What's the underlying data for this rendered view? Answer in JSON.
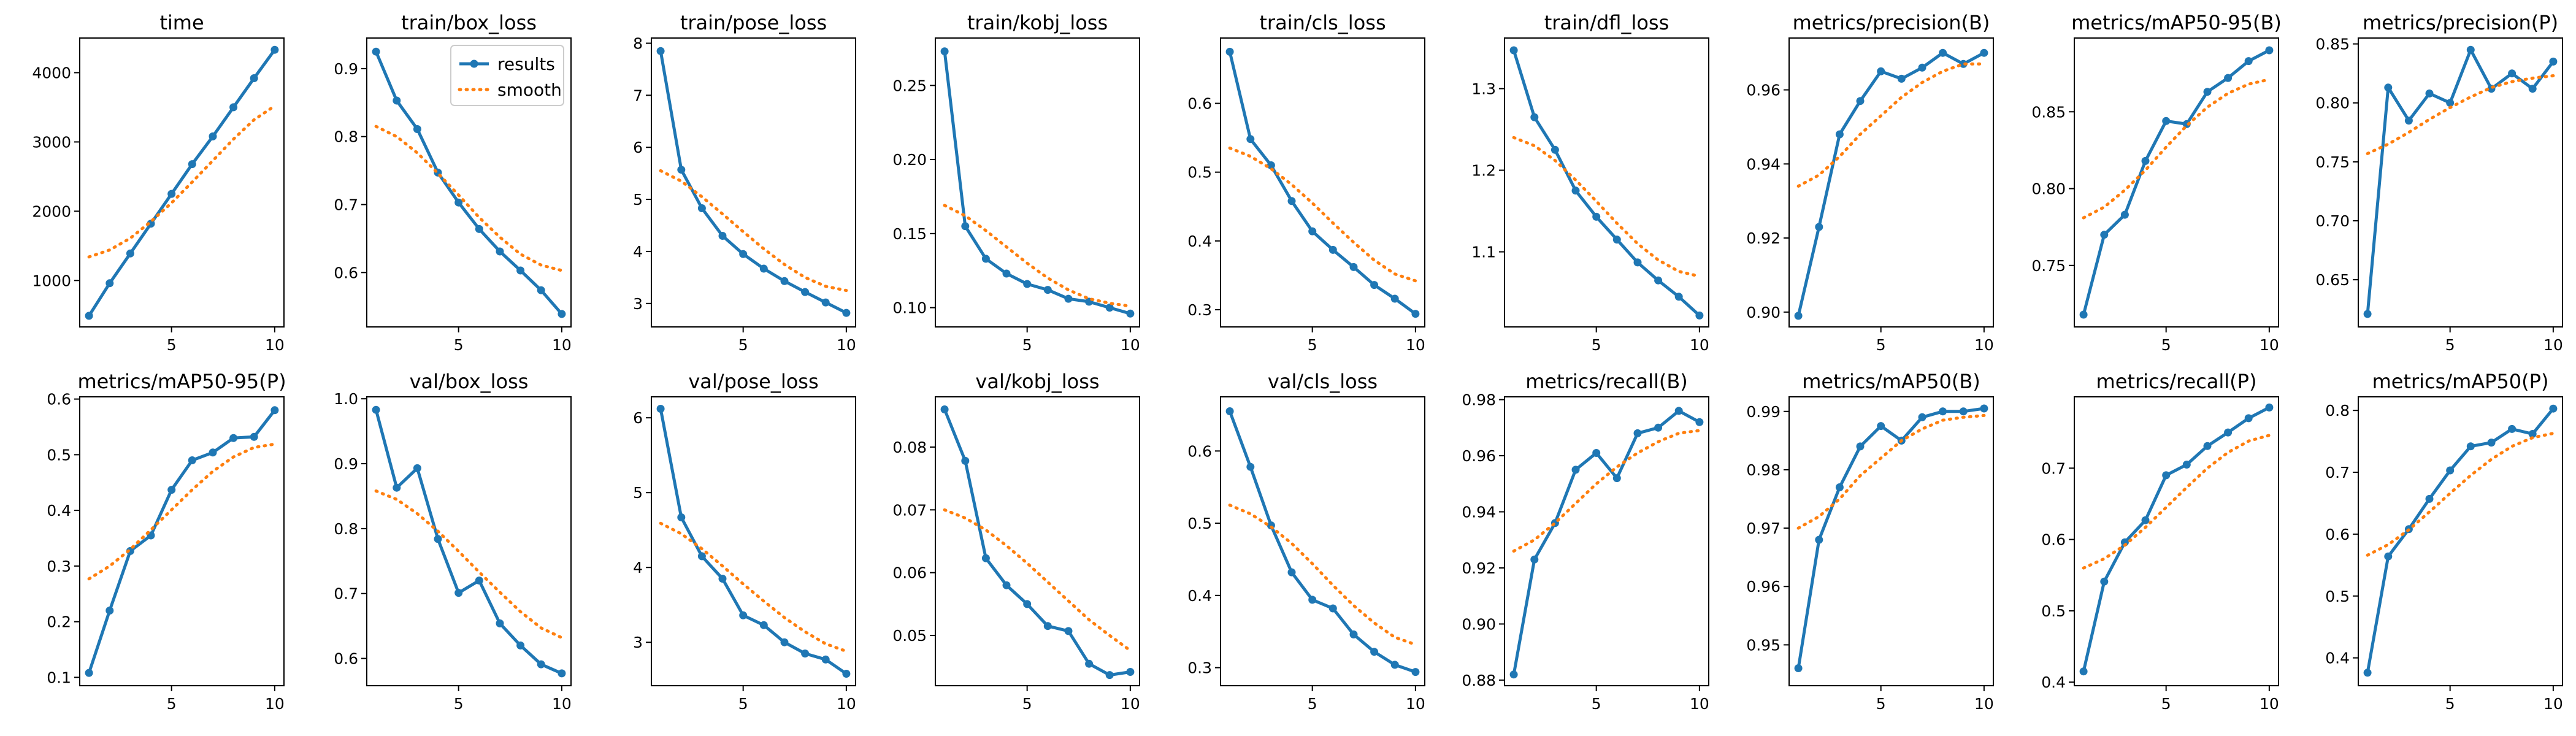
{
  "legend": {
    "results": "results",
    "smooth": "smooth"
  },
  "colors": {
    "results": "#1f77b4",
    "smooth": "#ff7f0e"
  },
  "chart_data": [
    {
      "type": "line",
      "title": "time",
      "x": [
        1,
        2,
        3,
        4,
        5,
        6,
        7,
        8,
        9,
        10
      ],
      "series": [
        {
          "name": "results",
          "values": [
            490,
            960,
            1390,
            1820,
            2250,
            2680,
            3080,
            3500,
            3920,
            4330
          ]
        },
        {
          "name": "smooth",
          "values": [
            1340,
            1440,
            1610,
            1850,
            2120,
            2420,
            2730,
            3040,
            3320,
            3520
          ]
        }
      ],
      "ylim": [
        330,
        4500
      ],
      "yticks": [
        1000,
        2000,
        3000,
        4000
      ],
      "yticklabels": [
        "1000",
        "2000",
        "3000",
        "4000"
      ],
      "xticks": [
        5,
        10
      ]
    },
    {
      "type": "line",
      "title": "train/box_loss",
      "x": [
        1,
        2,
        3,
        4,
        5,
        6,
        7,
        8,
        9,
        10
      ],
      "legend": "top-right",
      "series": [
        {
          "name": "results",
          "values": [
            0.925,
            0.853,
            0.811,
            0.747,
            0.703,
            0.664,
            0.631,
            0.603,
            0.574,
            0.539
          ]
        },
        {
          "name": "smooth",
          "values": [
            0.815,
            0.8,
            0.776,
            0.746,
            0.714,
            0.681,
            0.652,
            0.627,
            0.611,
            0.603
          ]
        }
      ],
      "ylim": [
        0.52,
        0.945
      ],
      "yticks": [
        0.6,
        0.7,
        0.8,
        0.9
      ],
      "yticklabels": [
        "0.6",
        "0.7",
        "0.8",
        "0.9"
      ],
      "xticks": [
        5,
        10
      ]
    },
    {
      "type": "line",
      "title": "train/pose_loss",
      "x": [
        1,
        2,
        3,
        4,
        5,
        6,
        7,
        8,
        9,
        10
      ],
      "series": [
        {
          "name": "results",
          "values": [
            7.85,
            5.57,
            4.83,
            4.3,
            3.95,
            3.67,
            3.43,
            3.22,
            3.02,
            2.82
          ]
        },
        {
          "name": "smooth",
          "values": [
            5.55,
            5.35,
            5.05,
            4.72,
            4.38,
            4.05,
            3.75,
            3.5,
            3.33,
            3.25
          ]
        }
      ],
      "ylim": [
        2.55,
        8.1
      ],
      "yticks": [
        3,
        4,
        5,
        6,
        7,
        8
      ],
      "yticklabels": [
        "3",
        "4",
        "5",
        "6",
        "7",
        "8"
      ],
      "xticks": [
        5,
        10
      ]
    },
    {
      "type": "line",
      "title": "train/kobj_loss",
      "x": [
        1,
        2,
        3,
        4,
        5,
        6,
        7,
        8,
        9,
        10
      ],
      "series": [
        {
          "name": "results",
          "values": [
            0.273,
            0.155,
            0.133,
            0.123,
            0.116,
            0.112,
            0.106,
            0.104,
            0.1,
            0.096
          ]
        },
        {
          "name": "smooth",
          "values": [
            0.169,
            0.162,
            0.152,
            0.141,
            0.13,
            0.12,
            0.112,
            0.106,
            0.103,
            0.101
          ]
        }
      ],
      "ylim": [
        0.087,
        0.282
      ],
      "yticks": [
        0.1,
        0.15,
        0.2,
        0.25
      ],
      "yticklabels": [
        "0.10",
        "0.15",
        "0.20",
        "0.25"
      ],
      "xticks": [
        5,
        10
      ]
    },
    {
      "type": "line",
      "title": "train/cls_loss",
      "x": [
        1,
        2,
        3,
        4,
        5,
        6,
        7,
        8,
        9,
        10
      ],
      "series": [
        {
          "name": "results",
          "values": [
            0.675,
            0.548,
            0.51,
            0.458,
            0.414,
            0.387,
            0.362,
            0.336,
            0.316,
            0.294
          ]
        },
        {
          "name": "smooth",
          "values": [
            0.535,
            0.523,
            0.505,
            0.482,
            0.455,
            0.426,
            0.398,
            0.372,
            0.352,
            0.342
          ]
        }
      ],
      "ylim": [
        0.275,
        0.695
      ],
      "yticks": [
        0.3,
        0.4,
        0.5,
        0.6
      ],
      "yticklabels": [
        "0.3",
        "0.4",
        "0.5",
        "0.6"
      ],
      "xticks": [
        5,
        10
      ]
    },
    {
      "type": "line",
      "title": "train/dfl_loss",
      "x": [
        1,
        2,
        3,
        4,
        5,
        6,
        7,
        8,
        9,
        10
      ],
      "series": [
        {
          "name": "results",
          "values": [
            1.347,
            1.265,
            1.225,
            1.175,
            1.143,
            1.115,
            1.087,
            1.065,
            1.045,
            1.022
          ]
        },
        {
          "name": "smooth",
          "values": [
            1.24,
            1.23,
            1.212,
            1.188,
            1.162,
            1.135,
            1.11,
            1.09,
            1.076,
            1.07
          ]
        }
      ],
      "ylim": [
        1.008,
        1.362
      ],
      "yticks": [
        1.1,
        1.2,
        1.3
      ],
      "yticklabels": [
        "1.1",
        "1.2",
        "1.3"
      ],
      "xticks": [
        5,
        10
      ]
    },
    {
      "type": "line",
      "title": "metrics/precision(B)",
      "x": [
        1,
        2,
        3,
        4,
        5,
        6,
        7,
        8,
        9,
        10
      ],
      "series": [
        {
          "name": "results",
          "values": [
            0.899,
            0.923,
            0.948,
            0.957,
            0.965,
            0.963,
            0.966,
            0.97,
            0.967,
            0.97
          ]
        },
        {
          "name": "smooth",
          "values": [
            0.934,
            0.937,
            0.942,
            0.948,
            0.953,
            0.958,
            0.962,
            0.965,
            0.967,
            0.967
          ]
        }
      ],
      "ylim": [
        0.896,
        0.974
      ],
      "yticks": [
        0.9,
        0.92,
        0.94,
        0.96
      ],
      "yticklabels": [
        "0.90",
        "0.92",
        "0.94",
        "0.96"
      ],
      "xticks": [
        5,
        10
      ]
    },
    {
      "type": "line",
      "title": "metrics/mAP50-95(B)",
      "x": [
        1,
        2,
        3,
        4,
        5,
        6,
        7,
        8,
        9,
        10
      ],
      "series": [
        {
          "name": "results",
          "values": [
            0.718,
            0.77,
            0.783,
            0.818,
            0.844,
            0.842,
            0.863,
            0.872,
            0.883,
            0.89
          ]
        },
        {
          "name": "smooth",
          "values": [
            0.781,
            0.788,
            0.799,
            0.812,
            0.827,
            0.841,
            0.853,
            0.862,
            0.868,
            0.871
          ]
        }
      ],
      "ylim": [
        0.71,
        0.898
      ],
      "yticks": [
        0.75,
        0.8,
        0.85
      ],
      "yticklabels": [
        "0.75",
        "0.80",
        "0.85"
      ],
      "xticks": [
        5,
        10
      ]
    },
    {
      "type": "line",
      "title": "metrics/precision(P)",
      "x": [
        1,
        2,
        3,
        4,
        5,
        6,
        7,
        8,
        9,
        10
      ],
      "series": [
        {
          "name": "results",
          "values": [
            0.621,
            0.813,
            0.785,
            0.808,
            0.8,
            0.845,
            0.812,
            0.825,
            0.812,
            0.835
          ]
        },
        {
          "name": "smooth",
          "values": [
            0.757,
            0.765,
            0.775,
            0.786,
            0.796,
            0.805,
            0.813,
            0.818,
            0.821,
            0.823
          ]
        }
      ],
      "ylim": [
        0.61,
        0.855
      ],
      "yticks": [
        0.65,
        0.7,
        0.75,
        0.8,
        0.85
      ],
      "yticklabels": [
        "0.65",
        "0.70",
        "0.75",
        "0.80",
        "0.85"
      ],
      "xticks": [
        5,
        10
      ]
    },
    {
      "type": "line",
      "title": "metrics/mAP50-95(P)",
      "x": [
        1,
        2,
        3,
        4,
        5,
        6,
        7,
        8,
        9,
        10
      ],
      "series": [
        {
          "name": "results",
          "values": [
            0.108,
            0.22,
            0.327,
            0.355,
            0.437,
            0.49,
            0.504,
            0.53,
            0.532,
            0.58
          ]
        },
        {
          "name": "smooth",
          "values": [
            0.277,
            0.3,
            0.33,
            0.365,
            0.401,
            0.437,
            0.47,
            0.496,
            0.513,
            0.519
          ]
        }
      ],
      "ylim": [
        0.085,
        0.604
      ],
      "yticks": [
        0.1,
        0.2,
        0.3,
        0.4,
        0.5,
        0.6
      ],
      "yticklabels": [
        "0.1",
        "0.2",
        "0.3",
        "0.4",
        "0.5",
        "0.6"
      ],
      "xticks": [
        5,
        10
      ]
    },
    {
      "type": "line",
      "title": "val/box_loss",
      "x": [
        1,
        2,
        3,
        4,
        5,
        6,
        7,
        8,
        9,
        10
      ],
      "series": [
        {
          "name": "results",
          "values": [
            0.983,
            0.863,
            0.893,
            0.784,
            0.701,
            0.72,
            0.654,
            0.62,
            0.591,
            0.577
          ]
        },
        {
          "name": "smooth",
          "values": [
            0.858,
            0.845,
            0.823,
            0.796,
            0.765,
            0.733,
            0.702,
            0.672,
            0.647,
            0.632
          ]
        }
      ],
      "ylim": [
        0.558,
        1.003
      ],
      "yticks": [
        0.6,
        0.7,
        0.8,
        0.9,
        1.0
      ],
      "yticklabels": [
        "0.6",
        "0.7",
        "0.8",
        "0.9",
        "1.0"
      ],
      "xticks": [
        5,
        10
      ]
    },
    {
      "type": "line",
      "title": "val/pose_loss",
      "x": [
        1,
        2,
        3,
        4,
        5,
        6,
        7,
        8,
        9,
        10
      ],
      "series": [
        {
          "name": "results",
          "values": [
            6.12,
            4.67,
            4.15,
            3.85,
            3.36,
            3.23,
            3.0,
            2.85,
            2.77,
            2.58
          ]
        },
        {
          "name": "smooth",
          "values": [
            4.59,
            4.45,
            4.25,
            4.02,
            3.78,
            3.55,
            3.33,
            3.14,
            2.98,
            2.88
          ]
        }
      ],
      "ylim": [
        2.42,
        6.28
      ],
      "yticks": [
        3,
        4,
        5,
        6
      ],
      "yticklabels": [
        "3",
        "4",
        "5",
        "6"
      ],
      "xticks": [
        5,
        10
      ]
    },
    {
      "type": "line",
      "title": "val/kobj_loss",
      "x": [
        1,
        2,
        3,
        4,
        5,
        6,
        7,
        8,
        9,
        10
      ],
      "series": [
        {
          "name": "results",
          "values": [
            0.086,
            0.0778,
            0.0623,
            0.058,
            0.055,
            0.0515,
            0.0507,
            0.0455,
            0.0437,
            0.0442
          ]
        },
        {
          "name": "smooth",
          "values": [
            0.07,
            0.0687,
            0.0668,
            0.0643,
            0.0615,
            0.0585,
            0.0555,
            0.0525,
            0.05,
            0.0476
          ]
        }
      ],
      "ylim": [
        0.042,
        0.088
      ],
      "yticks": [
        0.05,
        0.06,
        0.07,
        0.08
      ],
      "yticklabels": [
        "0.05",
        "0.06",
        "0.07",
        "0.08"
      ],
      "xticks": [
        5,
        10
      ]
    },
    {
      "type": "line",
      "title": "val/cls_loss",
      "x": [
        1,
        2,
        3,
        4,
        5,
        6,
        7,
        8,
        9,
        10
      ],
      "series": [
        {
          "name": "results",
          "values": [
            0.655,
            0.578,
            0.497,
            0.432,
            0.394,
            0.382,
            0.346,
            0.322,
            0.304,
            0.294
          ]
        },
        {
          "name": "smooth",
          "values": [
            0.525,
            0.513,
            0.495,
            0.472,
            0.444,
            0.414,
            0.386,
            0.362,
            0.342,
            0.332
          ]
        }
      ],
      "ylim": [
        0.275,
        0.675
      ],
      "yticks": [
        0.3,
        0.4,
        0.5,
        0.6
      ],
      "yticklabels": [
        "0.3",
        "0.4",
        "0.5",
        "0.6"
      ],
      "xticks": [
        5,
        10
      ]
    },
    {
      "type": "line",
      "title": "metrics/recall(B)",
      "x": [
        1,
        2,
        3,
        4,
        5,
        6,
        7,
        8,
        9,
        10
      ],
      "series": [
        {
          "name": "results",
          "values": [
            0.882,
            0.923,
            0.936,
            0.955,
            0.961,
            0.952,
            0.968,
            0.97,
            0.976,
            0.972
          ]
        },
        {
          "name": "smooth",
          "values": [
            0.926,
            0.93,
            0.936,
            0.943,
            0.95,
            0.956,
            0.961,
            0.965,
            0.968,
            0.969
          ]
        }
      ],
      "ylim": [
        0.878,
        0.981
      ],
      "yticks": [
        0.88,
        0.9,
        0.92,
        0.94,
        0.96,
        0.98
      ],
      "yticklabels": [
        "0.88",
        "0.90",
        "0.92",
        "0.94",
        "0.96",
        "0.98"
      ],
      "xticks": [
        5,
        10
      ]
    },
    {
      "type": "line",
      "title": "metrics/mAP50(B)",
      "x": [
        1,
        2,
        3,
        4,
        5,
        6,
        7,
        8,
        9,
        10
      ],
      "series": [
        {
          "name": "results",
          "values": [
            0.946,
            0.968,
            0.977,
            0.984,
            0.9875,
            0.985,
            0.989,
            0.99,
            0.99,
            0.9905
          ]
        },
        {
          "name": "smooth",
          "values": [
            0.97,
            0.972,
            0.975,
            0.979,
            0.982,
            0.985,
            0.987,
            0.9885,
            0.989,
            0.9893
          ]
        }
      ],
      "ylim": [
        0.943,
        0.9925
      ],
      "yticks": [
        0.95,
        0.96,
        0.97,
        0.98,
        0.99
      ],
      "yticklabels": [
        "0.95",
        "0.96",
        "0.97",
        "0.98",
        "0.99"
      ],
      "xticks": [
        5,
        10
      ]
    },
    {
      "type": "line",
      "title": "metrics/recall(P)",
      "x": [
        1,
        2,
        3,
        4,
        5,
        6,
        7,
        8,
        9,
        10
      ],
      "series": [
        {
          "name": "results",
          "values": [
            0.415,
            0.541,
            0.596,
            0.627,
            0.69,
            0.705,
            0.731,
            0.75,
            0.77,
            0.785
          ]
        },
        {
          "name": "smooth",
          "values": [
            0.56,
            0.573,
            0.592,
            0.617,
            0.645,
            0.673,
            0.7,
            0.722,
            0.738,
            0.746
          ]
        }
      ],
      "ylim": [
        0.395,
        0.8
      ],
      "yticks": [
        0.4,
        0.5,
        0.6,
        0.7
      ],
      "yticklabels": [
        "0.4",
        "0.5",
        "0.6",
        "0.7"
      ],
      "xticks": [
        5,
        10
      ]
    },
    {
      "type": "line",
      "title": "metrics/mAP50(P)",
      "x": [
        1,
        2,
        3,
        4,
        5,
        6,
        7,
        8,
        9,
        10
      ],
      "series": [
        {
          "name": "results",
          "values": [
            0.376,
            0.564,
            0.608,
            0.657,
            0.703,
            0.742,
            0.748,
            0.77,
            0.762,
            0.803
          ]
        },
        {
          "name": "smooth",
          "values": [
            0.566,
            0.583,
            0.607,
            0.636,
            0.666,
            0.695,
            0.721,
            0.742,
            0.756,
            0.763
          ]
        }
      ],
      "ylim": [
        0.355,
        0.822
      ],
      "yticks": [
        0.4,
        0.5,
        0.6,
        0.7,
        0.8
      ],
      "yticklabels": [
        "0.4",
        "0.5",
        "0.6",
        "0.7",
        "0.8"
      ],
      "xticks": [
        5,
        10
      ]
    }
  ]
}
